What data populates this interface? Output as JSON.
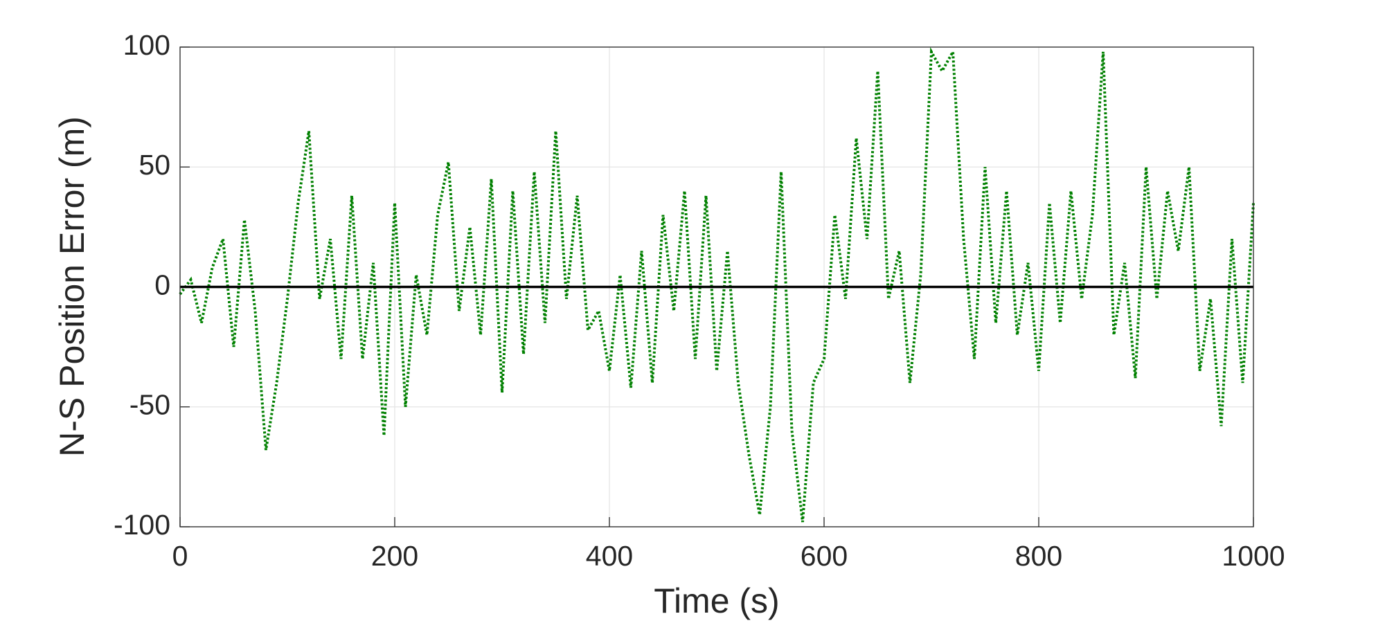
{
  "chart_data": {
    "type": "line",
    "xlabel": "Time (s)",
    "ylabel": "N-S Position Error (m)",
    "xlim": [
      0,
      1000
    ],
    "ylim": [
      -100,
      100
    ],
    "xticks": [
      0,
      200,
      400,
      600,
      800,
      1000
    ],
    "yticks": [
      -100,
      -50,
      0,
      50,
      100
    ],
    "grid": true,
    "series": [
      {
        "color": "#008000",
        "style": "dotted",
        "x": [
          0,
          10,
          20,
          30,
          40,
          50,
          60,
          70,
          80,
          90,
          100,
          110,
          120,
          130,
          140,
          150,
          160,
          170,
          180,
          190,
          200,
          210,
          220,
          230,
          240,
          250,
          260,
          270,
          280,
          290,
          300,
          310,
          320,
          330,
          340,
          350,
          360,
          370,
          380,
          390,
          400,
          410,
          420,
          430,
          440,
          450,
          460,
          470,
          480,
          490,
          500,
          510,
          520,
          530,
          540,
          550,
          560,
          570,
          580,
          590,
          600,
          610,
          620,
          630,
          640,
          650,
          660,
          670,
          680,
          690,
          700,
          710,
          720,
          730,
          740,
          750,
          760,
          770,
          780,
          790,
          800,
          810,
          820,
          830,
          840,
          850,
          860,
          870,
          880,
          890,
          900,
          910,
          920,
          930,
          940,
          950,
          960,
          970,
          980,
          990,
          1000
        ],
        "values": [
          -3,
          3,
          -15,
          8,
          20,
          -25,
          28,
          -10,
          -68,
          -40,
          -5,
          35,
          65,
          -5,
          20,
          -30,
          38,
          -30,
          10,
          -62,
          35,
          -50,
          5,
          -20,
          30,
          52,
          -10,
          25,
          -20,
          45,
          -44,
          40,
          -28,
          48,
          -15,
          65,
          -5,
          38,
          -18,
          -10,
          -35,
          5,
          -42,
          15,
          -40,
          30,
          -10,
          40,
          -30,
          38,
          -35,
          15,
          -40,
          -70,
          -95,
          -50,
          48,
          -60,
          -98,
          -40,
          -30,
          30,
          -5,
          62,
          20,
          90,
          -5,
          15,
          -40,
          5,
          98,
          90,
          98,
          20,
          -30,
          50,
          -15,
          40,
          -20,
          10,
          -35,
          35,
          -15,
          40,
          -5,
          30,
          98,
          -20,
          10,
          -38,
          50,
          -5,
          40,
          15,
          50,
          -35,
          -5,
          -58,
          20,
          -40,
          35
        ]
      },
      {
        "color": "#000000",
        "style": "solid",
        "x": [
          0,
          1000
        ],
        "values": [
          0,
          0
        ]
      }
    ]
  }
}
